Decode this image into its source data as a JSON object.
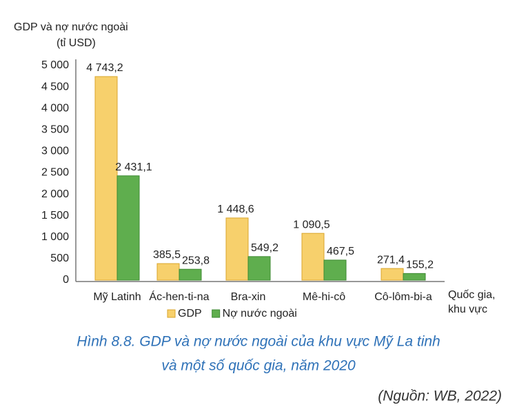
{
  "chart_data": {
    "type": "bar",
    "ylabel": [
      "GDP và nợ nước ngoài",
      "(tỉ USD)"
    ],
    "xlabel": [
      "Quốc gia,",
      "khu vực"
    ],
    "categories": [
      "Mỹ Latinh",
      "Ác-hen-ti-na",
      "Bra-xin",
      "Mê-hi-cô",
      "Cô-lôm-bi-a"
    ],
    "series": [
      {
        "name": "GDP",
        "color": "#f7d06c",
        "values": [
          4743.2,
          385.5,
          1448.6,
          1090.5,
          271.4
        ],
        "value_labels": [
          "4 743,2",
          "385,5",
          "1 448,6",
          "1 090,5",
          "271,4"
        ]
      },
      {
        "name": "Nợ nước ngoài",
        "color": "#5fae4e",
        "values": [
          2431.1,
          253.8,
          549.2,
          467.5,
          155.2
        ],
        "value_labels": [
          "2 431,1",
          "253,8",
          "549,2",
          "467,5",
          "155,2"
        ]
      }
    ],
    "ylim": [
      0,
      5000
    ],
    "yticks": [
      0,
      500,
      {
        "value": 1000,
        "label": "1 000"
      },
      {
        "value": 1500,
        "label": "1 500"
      },
      {
        "value": 2000,
        "label": "2 000"
      },
      {
        "value": 2500,
        "label": "2 500"
      },
      {
        "value": 3000,
        "label": "3 000"
      },
      {
        "value": 3500,
        "label": "3 500"
      },
      {
        "value": 4000,
        "label": "4 000"
      },
      {
        "value": 4500,
        "label": "4 500"
      },
      {
        "value": 5000,
        "label": "5 000"
      }
    ],
    "grid": false,
    "legend": "bottom"
  },
  "figure": {
    "caption": [
      "Hình 8.8. GDP và nợ nước ngoài của khu vực Mỹ La tinh",
      "và một số quốc gia, năm 2020"
    ],
    "source": "(Nguồn: WB, 2022)"
  }
}
